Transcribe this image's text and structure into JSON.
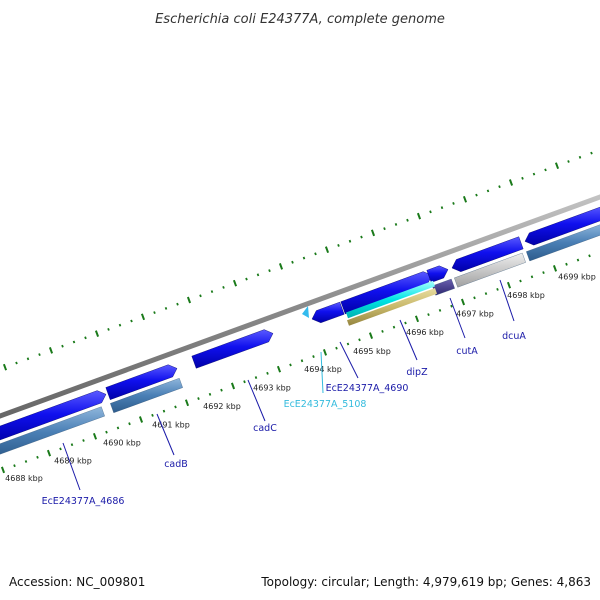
{
  "title": "Escherichia coli E24377A, complete genome",
  "footer": {
    "accession": "Accession: NC_009801",
    "summary": "Topology: circular; Length: 4,979,619 bp; Genes: 4,863"
  },
  "scale_ticks": [
    "4688 kbp",
    "4689 kbp",
    "4690 kbp",
    "4691 kbp",
    "4692 kbp",
    "4693 kbp",
    "4694 kbp",
    "4695 kbp",
    "4696 kbp",
    "4697 kbp",
    "4698 kbp",
    "4699 kbp"
  ],
  "gene_labels": [
    "EcE24377A_4686",
    "cadB",
    "cadC",
    "EcE24377A_5108",
    "EcE24377A_4690",
    "dipZ",
    "cutA",
    "dcuA"
  ],
  "colors": {
    "gene": "#1010ee",
    "cds": "#4a7fb5",
    "gene_label": "#1a1aa8",
    "alt_label": "#33bbdd",
    "backbone": "#8a8a8a",
    "ticks": "#1a7a1a",
    "pseudo": "#c8c8c8",
    "rna": "#00e5e5",
    "misc": "#c8b86a"
  }
}
